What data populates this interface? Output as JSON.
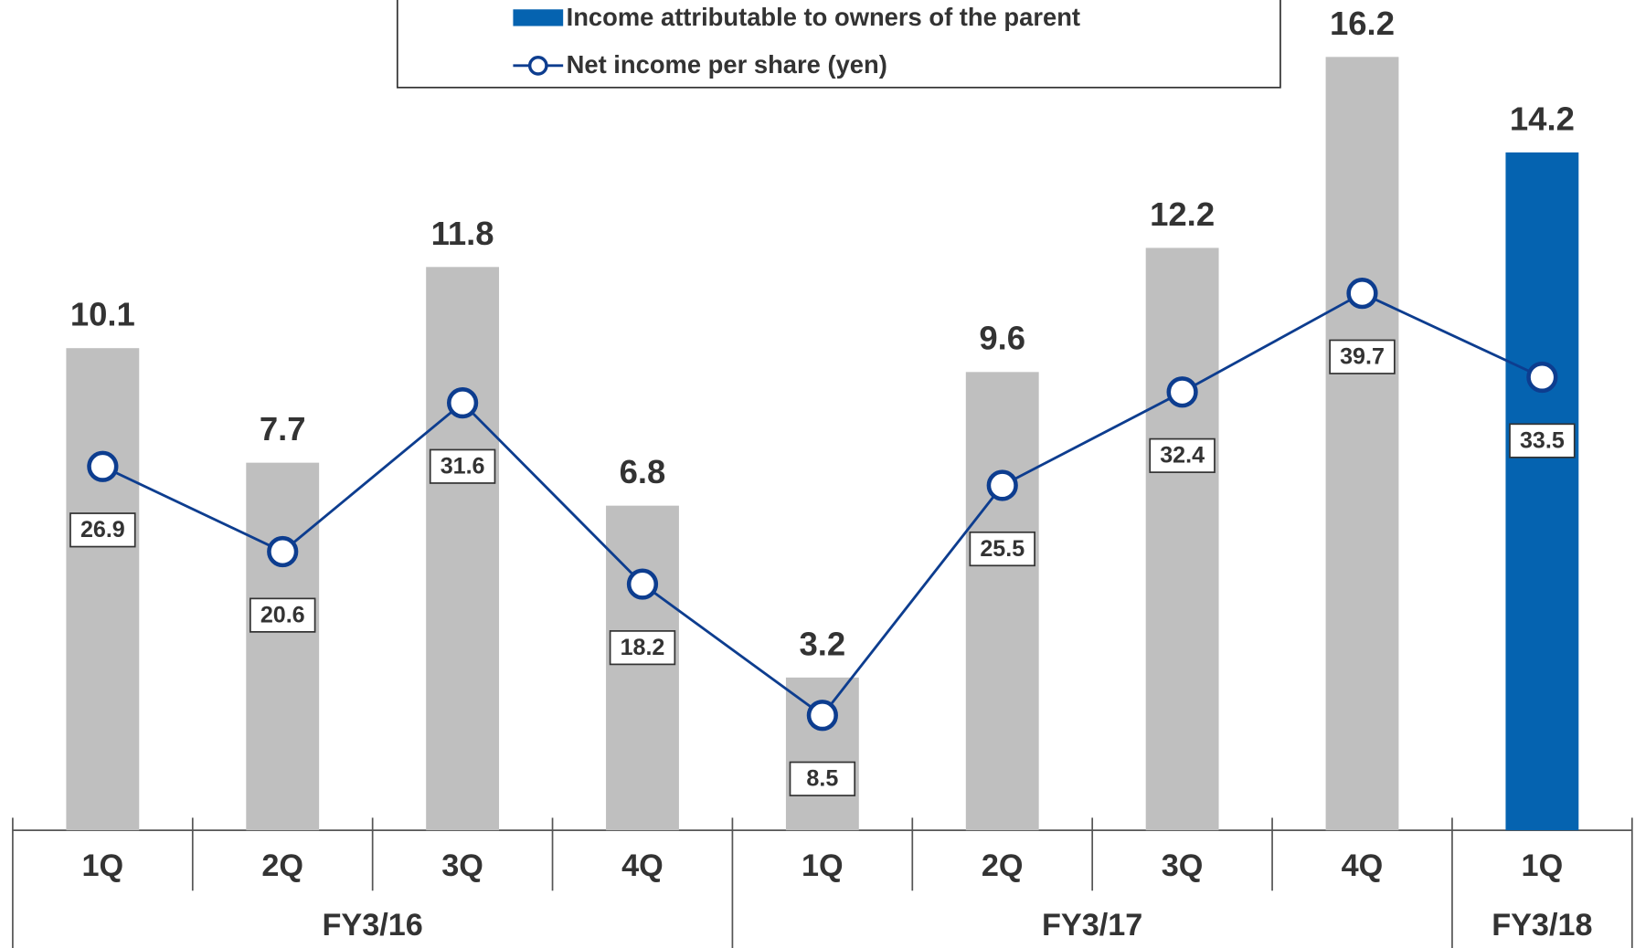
{
  "chart_data": {
    "type": "bar",
    "categories": [
      "1Q",
      "2Q",
      "3Q",
      "4Q",
      "1Q",
      "2Q",
      "3Q",
      "4Q",
      "1Q"
    ],
    "groups": [
      {
        "label": "FY3/16",
        "span": 4
      },
      {
        "label": "FY3/17",
        "span": 4
      },
      {
        "label": "FY3/18",
        "span": 1
      }
    ],
    "series": [
      {
        "name": "Income attributable to owners of the parent",
        "type": "bar",
        "color": "#0563b0",
        "colors": [
          "#bfbfbf",
          "#bfbfbf",
          "#bfbfbf",
          "#bfbfbf",
          "#bfbfbf",
          "#bfbfbf",
          "#bfbfbf",
          "#bfbfbf",
          "#0563b0"
        ],
        "values": [
          10.1,
          7.7,
          11.8,
          6.8,
          3.2,
          9.6,
          12.2,
          16.2,
          14.2
        ]
      },
      {
        "name": "Net income per share (yen)",
        "type": "line",
        "axis": "y2",
        "color": "#0d3d8f",
        "values": [
          26.9,
          20.6,
          31.6,
          18.2,
          8.5,
          25.5,
          32.4,
          39.7,
          33.5
        ]
      }
    ],
    "ylim": [
      0,
      17
    ],
    "y2lim": [
      0,
      60
    ]
  }
}
